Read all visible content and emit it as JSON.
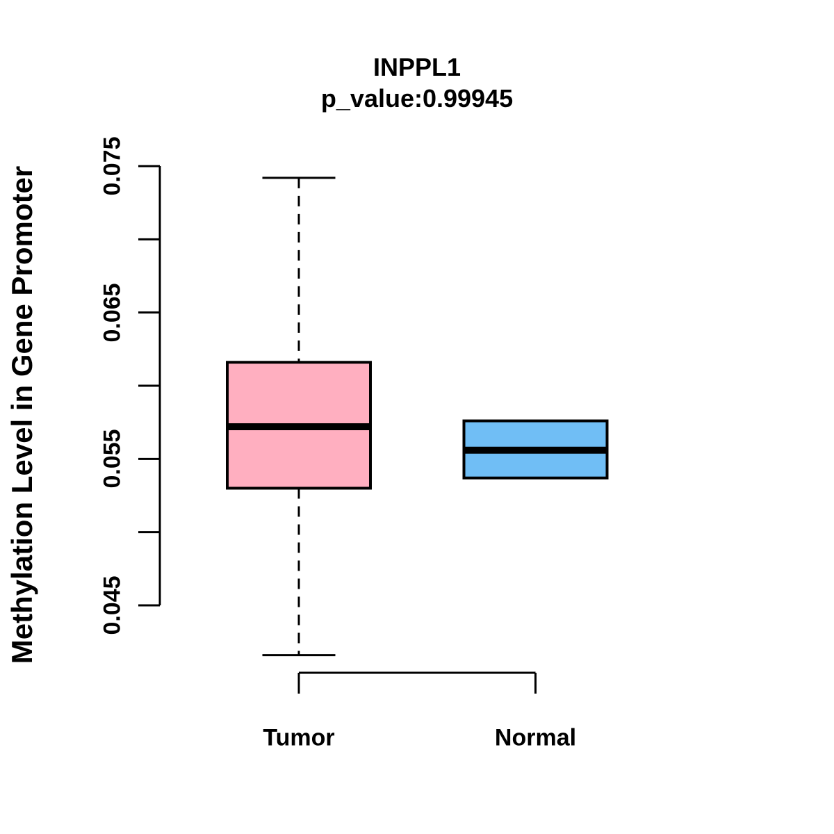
{
  "chart_data": {
    "type": "boxplot",
    "title": "INPPL1",
    "subtitle": "p_value:0.99945",
    "ylabel": "Methylation Level in Gene Promoter",
    "xlabel": "",
    "ylim": [
      0.045,
      0.075
    ],
    "grid": false,
    "background_color": "#FFFFFF",
    "axis_color": "#000000",
    "yticks": [
      {
        "value": 0.045,
        "label": "0.045"
      },
      {
        "value": 0.05,
        "label": ""
      },
      {
        "value": 0.055,
        "label": "0.055"
      },
      {
        "value": 0.06,
        "label": ""
      },
      {
        "value": 0.065,
        "label": "0.065"
      },
      {
        "value": 0.07,
        "label": ""
      },
      {
        "value": 0.075,
        "label": "0.075"
      }
    ],
    "groups": [
      {
        "label": "Tumor",
        "fill_color": "#FFAFC0",
        "has_whiskers": true,
        "stats": {
          "whisker_low": 0.0416,
          "q1": 0.053,
          "median": 0.0572,
          "q3": 0.0616,
          "whisker_high": 0.0742
        }
      },
      {
        "label": "Normal",
        "fill_color": "#70BEF5",
        "has_whiskers": false,
        "stats": {
          "whisker_low": 0.0537,
          "q1": 0.0537,
          "median": 0.0556,
          "q3": 0.0576,
          "whisker_high": 0.0576
        }
      }
    ]
  }
}
